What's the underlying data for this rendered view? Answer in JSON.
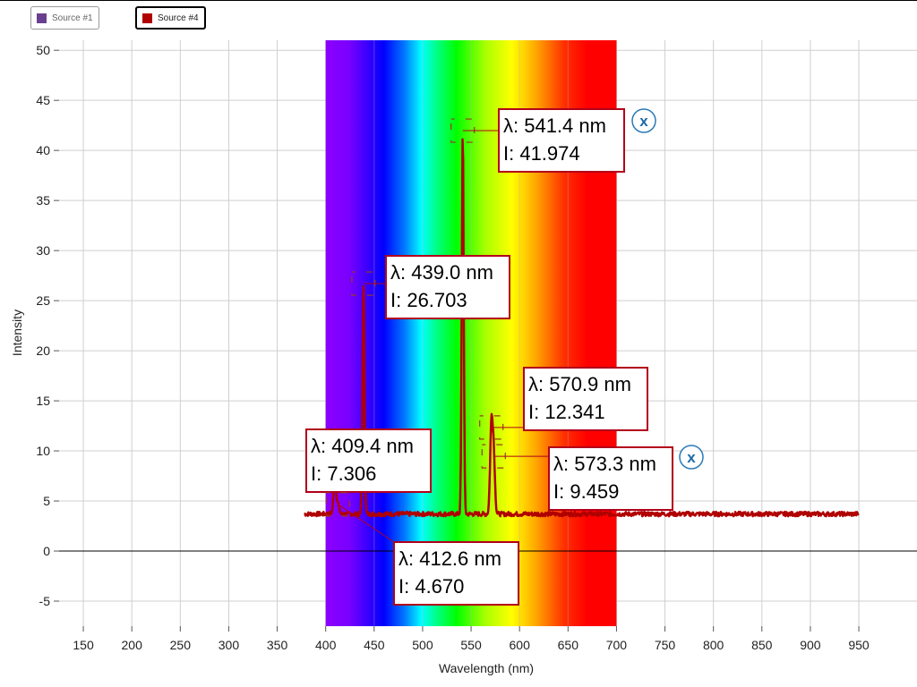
{
  "legend": [
    {
      "label": "Source #1",
      "color": "#6b3f8f"
    },
    {
      "label": "Source #4",
      "color": "#b00000"
    }
  ],
  "chart_data": {
    "type": "line",
    "xlabel": "Wavelength (nm)",
    "ylabel": "Intensity",
    "xlim": [
      125,
      1010
    ],
    "ylim": [
      -7.5,
      51
    ],
    "xticks": [
      150,
      200,
      250,
      300,
      350,
      400,
      450,
      500,
      550,
      600,
      650,
      700,
      750,
      800,
      850,
      900,
      950
    ],
    "yticks": [
      -5,
      0,
      5,
      10,
      15,
      20,
      25,
      30,
      35,
      40,
      45,
      50
    ],
    "grid": true,
    "visible_spectrum_band": [
      400,
      700
    ],
    "series": [
      {
        "name": "Source #4",
        "color": "#b00000",
        "baseline": 3.7,
        "x_range": [
          378,
          950
        ],
        "peaks": [
          {
            "x": 409.4,
            "y": 7.306
          },
          {
            "x": 412.6,
            "y": 4.67
          },
          {
            "x": 439.0,
            "y": 26.703
          },
          {
            "x": 541.4,
            "y": 41.974
          },
          {
            "x": 570.9,
            "y": 12.341
          },
          {
            "x": 573.3,
            "y": 9.459
          }
        ]
      }
    ],
    "annotations": [
      {
        "wl": "λ: 541.4 nm",
        "i": "I: 41.974",
        "x": 541.4,
        "y": 41.974
      },
      {
        "wl": "λ: 439.0 nm",
        "i": "I: 26.703",
        "x": 439.0,
        "y": 26.703
      },
      {
        "wl": "λ: 570.9 nm",
        "i": "I: 12.341",
        "x": 570.9,
        "y": 12.341
      },
      {
        "wl": "λ: 573.3 nm",
        "i": "I: 9.459",
        "x": 573.3,
        "y": 9.459
      },
      {
        "wl": "λ: 409.4 nm",
        "i": "I: 7.306",
        "x": 409.4,
        "y": 7.306
      },
      {
        "wl": "λ: 412.6 nm",
        "i": "I: 4.670",
        "x": 412.6,
        "y": 4.67
      }
    ],
    "close_buttons": [
      {
        "label": "x"
      },
      {
        "label": "x"
      }
    ]
  }
}
